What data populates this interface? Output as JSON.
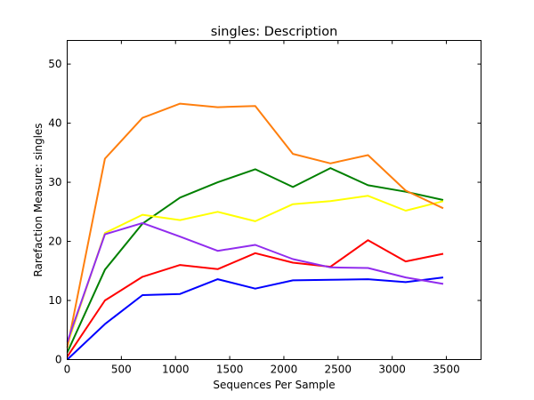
{
  "chart_data": {
    "type": "line",
    "title": "singles: Description",
    "xlabel": "Sequences Per Sample",
    "ylabel": "Rarefaction Measure: singles",
    "xlim": [
      0,
      3820
    ],
    "ylim": [
      0,
      54
    ],
    "xticks": [
      0,
      500,
      1000,
      1500,
      2000,
      2500,
      3000,
      3500
    ],
    "yticks": [
      0,
      10,
      20,
      30,
      40,
      50
    ],
    "grid": false,
    "x": [
      1,
      348,
      695,
      1042,
      1389,
      1736,
      2083,
      2430,
      2777,
      3124,
      3471
    ],
    "series": [
      {
        "color": "#0000ff",
        "values": [
          0.0,
          6.0,
          10.9,
          11.1,
          13.6,
          12.0,
          13.4,
          13.5,
          13.6,
          13.1,
          13.9
        ]
      },
      {
        "color": "#ff0000",
        "values": [
          0.5,
          10.0,
          14.0,
          16.0,
          15.3,
          18.0,
          16.4,
          15.7,
          20.2,
          16.6,
          17.9
        ]
      },
      {
        "color": "#008000",
        "values": [
          1.2,
          15.2,
          23.0,
          27.4,
          30.0,
          32.2,
          29.2,
          32.4,
          29.5,
          28.4,
          27.0
        ]
      },
      {
        "color": "#ffff00",
        "values": [
          2.5,
          21.4,
          24.5,
          23.6,
          25.0,
          23.4,
          26.3,
          26.8,
          27.7,
          25.2,
          26.8
        ]
      },
      {
        "color": "#ff7f0e",
        "values": [
          2.0,
          34.0,
          40.9,
          43.3,
          42.7,
          42.9,
          34.8,
          33.2,
          34.6,
          28.6,
          25.6
        ]
      },
      {
        "color": "#912cee",
        "values": [
          3.0,
          21.2,
          23.1,
          20.8,
          18.4,
          19.4,
          17.0,
          15.6,
          15.5,
          13.9,
          12.8
        ]
      }
    ]
  }
}
